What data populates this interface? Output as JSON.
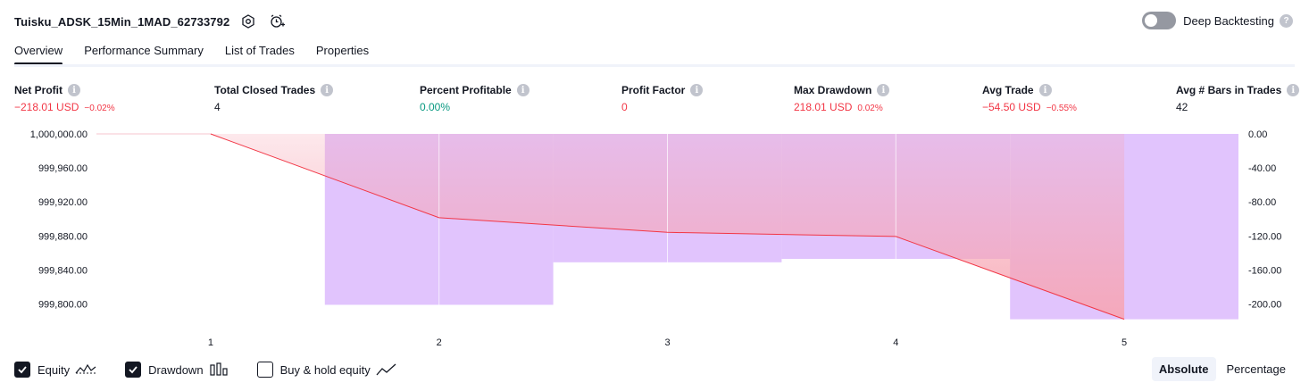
{
  "header": {
    "strategy_name": "Tuisku_ADSK_15Min_1MAD_62733792",
    "settings_icon": "gear-icon",
    "alert_icon": "add-alarm-icon",
    "deep_backtesting_label": "Deep Backtesting",
    "deep_backtesting_enabled": false,
    "help_icon": "question-icon"
  },
  "tabs": [
    {
      "label": "Overview",
      "active": true
    },
    {
      "label": "Performance Summary",
      "active": false
    },
    {
      "label": "List of Trades",
      "active": false
    },
    {
      "label": "Properties",
      "active": false
    }
  ],
  "metrics": {
    "net_profit": {
      "label": "Net Profit",
      "value": "−218.01 USD",
      "sub": "−0.02%"
    },
    "total_closed_trades": {
      "label": "Total Closed Trades",
      "value": "4"
    },
    "percent_profitable": {
      "label": "Percent Profitable",
      "value": "0.00%"
    },
    "profit_factor": {
      "label": "Profit Factor",
      "value": "0"
    },
    "max_drawdown": {
      "label": "Max Drawdown",
      "value": "218.01 USD",
      "sub": "0.02%"
    },
    "avg_trade": {
      "label": "Avg Trade",
      "value": "−54.50 USD",
      "sub": "−0.55%"
    },
    "avg_bars": {
      "label": "Avg # Bars in Trades",
      "value": "42"
    }
  },
  "colors": {
    "negative": "#f23645",
    "positive": "#089981",
    "drawdown_bar": "#e1c4fd",
    "equity_line": "#f23645",
    "equity_fill": "#f7a5b3"
  },
  "chart_data": {
    "type": "line",
    "x": [
      1,
      2,
      3,
      4,
      5
    ],
    "series": [
      {
        "values": [
          1000000.0,
          999901.43,
          999884.2,
          999879.37,
          999781.99
        ]
      },
      {
        "values": [
          0,
          -201.0,
          -151.0,
          -147.0,
          -218.01
        ]
      }
    ],
    "left_ticks": [
      "1,000,000.00",
      "999,960.00",
      "999,920.00",
      "999,880.00",
      "999,840.00",
      "999,800.00"
    ],
    "left_ylim": [
      999800,
      1000000
    ],
    "right_ticks": [
      "0.00",
      "-40.00",
      "-80.00",
      "-120.00",
      "-160.00",
      "-200.00"
    ],
    "right_ylim": [
      -200,
      0
    ],
    "x_ticks": [
      "1",
      "2",
      "3",
      "4",
      "5"
    ]
  },
  "legend": {
    "equity": {
      "label": "Equity",
      "checked": true,
      "icon": "equity-line-icon"
    },
    "drawdown": {
      "label": "Drawdown",
      "checked": true,
      "icon": "bars-icon"
    },
    "buy_hold": {
      "label": "Buy & hold equity",
      "checked": false,
      "icon": "trend-line-icon"
    }
  },
  "mode": {
    "absolute": "Absolute",
    "percentage": "Percentage",
    "selected": "Absolute"
  }
}
